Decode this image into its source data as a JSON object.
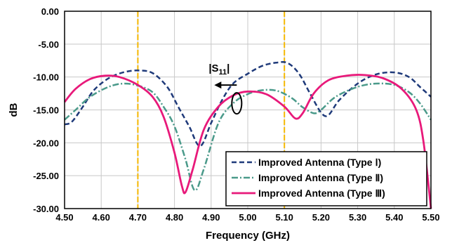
{
  "chart_data": {
    "type": "line",
    "xlabel": "Frequency (GHz)",
    "ylabel": "dB",
    "xlim": [
      4.5,
      5.5
    ],
    "ylim": [
      -30,
      0
    ],
    "x_ticks": [
      "4.50",
      "4.60",
      "4.70",
      "4.80",
      "4.90",
      "5.00",
      "5.10",
      "5.20",
      "5.30",
      "5.40",
      "5.50"
    ],
    "y_ticks": [
      "0.00",
      "-5.00",
      "-10.00",
      "-15.00",
      "-20.00",
      "-25.00",
      "-30.00"
    ],
    "grid": true,
    "legend_position": "bottom-right",
    "vertical_markers": [
      4.7,
      5.1
    ],
    "marker_color": "#f5b800",
    "annotation": {
      "label_main": "|S",
      "label_sub": "11",
      "label_end": "|",
      "x": 4.97,
      "y": -14.0
    },
    "series": [
      {
        "name": "Improved Antenna (Type Ⅰ)",
        "color": "#1f3a7a",
        "dash": "dash",
        "points": [
          [
            4.5,
            -17.2
          ],
          [
            4.52,
            -16.8
          ],
          [
            4.55,
            -14.5
          ],
          [
            4.58,
            -12.0
          ],
          [
            4.62,
            -10.2
          ],
          [
            4.66,
            -9.3
          ],
          [
            4.7,
            -9.0
          ],
          [
            4.74,
            -9.4
          ],
          [
            4.78,
            -11.5
          ],
          [
            4.81,
            -14.5
          ],
          [
            4.84,
            -17.5
          ],
          [
            4.87,
            -20.5
          ],
          [
            4.9,
            -17.0
          ],
          [
            4.93,
            -13.5
          ],
          [
            4.96,
            -11.0
          ],
          [
            5.0,
            -9.5
          ],
          [
            5.04,
            -8.3
          ],
          [
            5.08,
            -7.8
          ],
          [
            5.11,
            -7.9
          ],
          [
            5.14,
            -9.5
          ],
          [
            5.17,
            -12.5
          ],
          [
            5.2,
            -15.4
          ],
          [
            5.22,
            -15.8
          ],
          [
            5.25,
            -13.5
          ],
          [
            5.3,
            -11.0
          ],
          [
            5.35,
            -9.6
          ],
          [
            5.4,
            -9.3
          ],
          [
            5.44,
            -10.0
          ],
          [
            5.47,
            -11.5
          ],
          [
            5.5,
            -13.0
          ]
        ]
      },
      {
        "name": "Improved Antenna (Type Ⅱ)",
        "color": "#4a9a8a",
        "dash": "dashdot",
        "points": [
          [
            4.5,
            -16.5
          ],
          [
            4.53,
            -15.0
          ],
          [
            4.57,
            -13.0
          ],
          [
            4.62,
            -11.5
          ],
          [
            4.66,
            -11.0
          ],
          [
            4.7,
            -11.3
          ],
          [
            4.74,
            -12.3
          ],
          [
            4.77,
            -14.5
          ],
          [
            4.8,
            -17.5
          ],
          [
            4.83,
            -22.5
          ],
          [
            4.855,
            -27.2
          ],
          [
            4.88,
            -24.0
          ],
          [
            4.92,
            -17.0
          ],
          [
            4.96,
            -14.0
          ],
          [
            5.0,
            -12.6
          ],
          [
            5.04,
            -12.0
          ],
          [
            5.08,
            -12.1
          ],
          [
            5.12,
            -13.2
          ],
          [
            5.15,
            -14.6
          ],
          [
            5.18,
            -15.5
          ],
          [
            5.2,
            -15.0
          ],
          [
            5.24,
            -13.0
          ],
          [
            5.3,
            -11.5
          ],
          [
            5.35,
            -11.0
          ],
          [
            5.4,
            -11.2
          ],
          [
            5.44,
            -12.3
          ],
          [
            5.47,
            -14.0
          ],
          [
            5.5,
            -16.5
          ]
        ]
      },
      {
        "name": "Improved Antenna (Type Ⅲ)",
        "color": "#e8197a",
        "dash": "solid",
        "points": [
          [
            4.5,
            -13.8
          ],
          [
            4.53,
            -11.8
          ],
          [
            4.57,
            -10.3
          ],
          [
            4.61,
            -9.8
          ],
          [
            4.65,
            -10.0
          ],
          [
            4.7,
            -11.2
          ],
          [
            4.74,
            -13.0
          ],
          [
            4.77,
            -16.0
          ],
          [
            4.8,
            -21.5
          ],
          [
            4.82,
            -26.5
          ],
          [
            4.83,
            -27.5
          ],
          [
            4.85,
            -24.0
          ],
          [
            4.88,
            -18.0
          ],
          [
            4.92,
            -14.5
          ],
          [
            4.96,
            -12.8
          ],
          [
            5.0,
            -12.2
          ],
          [
            5.05,
            -12.6
          ],
          [
            5.1,
            -14.5
          ],
          [
            5.13,
            -16.3
          ],
          [
            5.15,
            -15.5
          ],
          [
            5.18,
            -12.5
          ],
          [
            5.22,
            -10.5
          ],
          [
            5.27,
            -9.8
          ],
          [
            5.32,
            -9.7
          ],
          [
            5.37,
            -10.2
          ],
          [
            5.42,
            -11.8
          ],
          [
            5.46,
            -15.0
          ],
          [
            5.48,
            -20.0
          ],
          [
            5.5,
            -30.0
          ]
        ]
      }
    ]
  }
}
